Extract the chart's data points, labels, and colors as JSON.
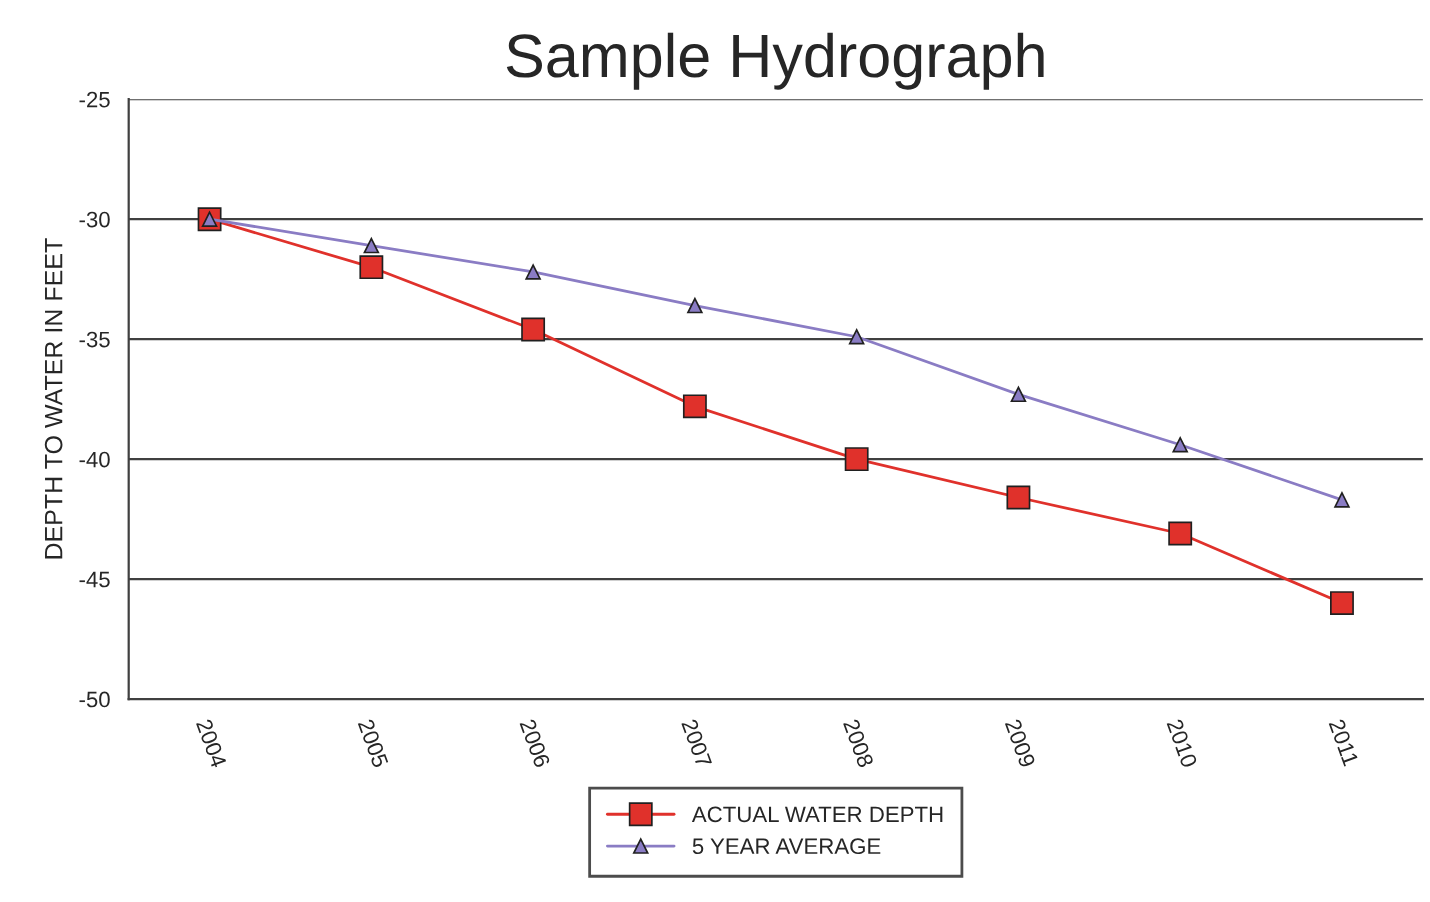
{
  "chart_data": {
    "type": "line",
    "title": "Sample Hydrograph",
    "ylabel": "DEPTH TO WATER IN FEET",
    "categories": [
      "2004",
      "2005",
      "2006",
      "2007",
      "2008",
      "2009",
      "2010",
      "2011"
    ],
    "series": [
      {
        "name": "ACTUAL WATER DEPTH",
        "color": "#e0312b",
        "marker": "square",
        "values": [
          -30,
          -32,
          -34.6,
          -37.8,
          -40,
          -41.6,
          -43.1,
          -46
        ]
      },
      {
        "name": "5 YEAR AVERAGE",
        "color": "#8a7cc4",
        "marker": "triangle",
        "values": [
          -30,
          -31.1,
          -32.2,
          -33.6,
          -34.9,
          -37.3,
          -39.4,
          -41.7
        ]
      }
    ],
    "ylim": [
      -50,
      -25
    ],
    "yticks": [
      -50,
      -45,
      -40,
      -35,
      -30,
      -25
    ],
    "grid": "y",
    "legend": "bottom",
    "line_style": "solid"
  }
}
